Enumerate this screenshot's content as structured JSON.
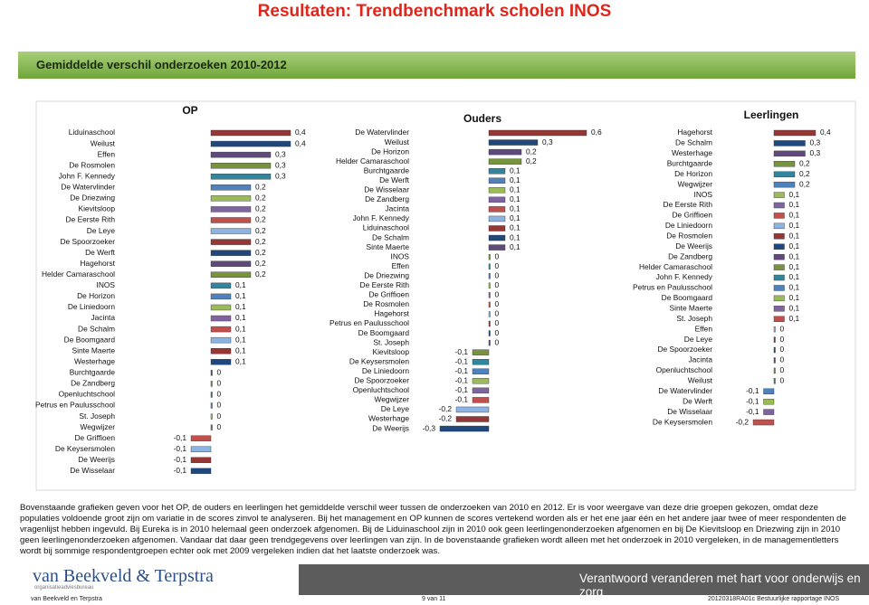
{
  "header": {
    "title": "Resultaten: Trendbenchmark scholen INOS",
    "section": "Gemiddelde verschil onderzoeken 2010-2012"
  },
  "chart_data": [
    {
      "type": "bar",
      "orientation": "horizontal",
      "title": "OP",
      "categories": [
        "Liduinaschool",
        "Weilust",
        "Effen",
        "De Rosmolen",
        "John F. Kennedy",
        "De Watervlinder",
        "De Driezwing",
        "Kievitsloop",
        "De Eerste Rith",
        "De Leye",
        "De Spoorzoeker",
        "De Werft",
        "Hagehorst",
        "Helder Camaraschool",
        "INOS",
        "De Horizon",
        "De Liniedoorn",
        "Jacinta",
        "De Schalm",
        "De Boomgaard",
        "Sinte Maerte",
        "Westerhage",
        "Burchtgaarde",
        "De Zandberg",
        "Openluchtschool",
        "Petrus en Paulusschool",
        "St. Joseph",
        "Wegwijzer",
        "De Griffioen",
        "De Keysersmolen",
        "De Weerijs",
        "De Wisselaar"
      ],
      "values": [
        0.4,
        0.4,
        0.3,
        0.3,
        0.3,
        0.2,
        0.2,
        0.2,
        0.2,
        0.2,
        0.2,
        0.2,
        0.2,
        0.2,
        0.1,
        0.1,
        0.1,
        0.1,
        0.1,
        0.1,
        0.1,
        0.1,
        0,
        0,
        0,
        0,
        0,
        0,
        -0.1,
        -0.1,
        -0.1,
        -0.1
      ],
      "value_labels": [
        "0,4",
        "0,4",
        "0,3",
        "0,3",
        "0,3",
        "0,2",
        "0,2",
        "0,2",
        "0,2",
        "0,2",
        "0,2",
        "0,2",
        "0,2",
        "0,2",
        "0,1",
        "0,1",
        "0,1",
        "0,1",
        "0,1",
        "0,1",
        "0,1",
        "0,1",
        "0",
        "0",
        "0",
        "0",
        "0",
        "0",
        "-0,1",
        "-0,1",
        "-0,1",
        "-0,1"
      ],
      "palette": [
        "#953735",
        "#1f497d",
        "#604a7b",
        "#77933c",
        "#31859c",
        "#4f81bd",
        "#9bbb59",
        "#8064a2",
        "#c0504d",
        "#8db3e2"
      ]
    },
    {
      "type": "bar",
      "orientation": "horizontal",
      "title": "Ouders",
      "categories": [
        "De Watervlinder",
        "Weilust",
        "De Horizon",
        "Helder Camaraschool",
        "Burchtgaarde",
        "De Werft",
        "De Wisselaar",
        "De Zandberg",
        "Jacinta",
        "John F. Kennedy",
        "Liduinaschool",
        "De Schalm",
        "Sinte Maerte",
        "INOS",
        "Effen",
        "De Driezwing",
        "De Eerste Rith",
        "De Griffioen",
        "De Rosmolen",
        "Hagehorst",
        "Petrus en Paulusschool",
        "De Boomgaard",
        "St. Joseph",
        "Kievitsloop",
        "De Keysersmolen",
        "De Liniedoorn",
        "De Spoorzoeker",
        "Openluchtschool",
        "Wegwijzer",
        "De Leye",
        "Westerhage",
        "De Weerijs"
      ],
      "values": [
        0.6,
        0.3,
        0.2,
        0.2,
        0.1,
        0.1,
        0.1,
        0.1,
        0.1,
        0.1,
        0.1,
        0.1,
        0.1,
        0,
        0,
        0,
        0,
        0,
        0,
        0,
        0,
        0,
        0,
        -0.1,
        -0.1,
        -0.1,
        -0.1,
        -0.1,
        -0.1,
        -0.2,
        -0.2,
        -0.3
      ],
      "value_labels": [
        "0,6",
        "0,3",
        "0,2",
        "0,2",
        "0,1",
        "0,1",
        "0,1",
        "0,1",
        "0,1",
        "0,1",
        "0,1",
        "0,1",
        "0,1",
        "0",
        "0",
        "0",
        "0",
        "0",
        "0",
        "0",
        "0",
        "0",
        "0",
        "-0,1",
        "-0,1",
        "-0,1",
        "-0,1",
        "-0,1",
        "-0,1",
        "-0,2",
        "-0,2",
        "-0,3"
      ],
      "palette": [
        "#953735",
        "#1f497d",
        "#604a7b",
        "#77933c",
        "#31859c",
        "#4f81bd",
        "#9bbb59",
        "#8064a2",
        "#c0504d",
        "#8db3e2"
      ]
    },
    {
      "type": "bar",
      "orientation": "horizontal",
      "title": "Leerlingen",
      "categories": [
        "Hagehorst",
        "De Schalm",
        "Westerhage",
        "Burchtgaarde",
        "De Horizon",
        "Wegwijzer",
        "INOS",
        "De Eerste Rith",
        "De Griffioen",
        "De Liniedoorn",
        "De Rosmolen",
        "De Weerijs",
        "De Zandberg",
        "Helder Camaraschool",
        "John F. Kennedy",
        "Petrus en Paulusschool",
        "De Boomgaard",
        "Sinte Maerte",
        "St. Joseph",
        "Effen",
        "De Leye",
        "De Spoorzoeker",
        "Jacinta",
        "Openluchtschool",
        "Weilust",
        "De Watervlinder",
        "De Werft",
        "De Wisselaar",
        "De Keysersmolen"
      ],
      "values": [
        0.4,
        0.3,
        0.3,
        0.2,
        0.2,
        0.2,
        0.1,
        0.1,
        0.1,
        0.1,
        0.1,
        0.1,
        0.1,
        0.1,
        0.1,
        0.1,
        0.1,
        0.1,
        0.1,
        0,
        0,
        0,
        0,
        0,
        0,
        -0.1,
        -0.1,
        -0.1,
        -0.2
      ],
      "value_labels": [
        "0,4",
        "0,3",
        "0,3",
        "0,2",
        "0,2",
        "0,2",
        "0,1",
        "0,1",
        "0,1",
        "0,1",
        "0,1",
        "0,1",
        "0,1",
        "0,1",
        "0,1",
        "0,1",
        "0,1",
        "0,1",
        "0,1",
        "0",
        "0",
        "0",
        "0",
        "0",
        "0",
        "-0,1",
        "-0,1",
        "-0,1",
        "-0,2"
      ],
      "palette": [
        "#953735",
        "#1f497d",
        "#604a7b",
        "#77933c",
        "#31859c",
        "#4f81bd",
        "#9bbb59",
        "#8064a2",
        "#c0504d",
        "#8db3e2"
      ]
    }
  ],
  "body": {
    "paragraph": "Bovenstaande grafieken geven voor het OP, de ouders en leerlingen het gemiddelde verschil weer tussen de onderzoeken van 2010 en 2012. Er is voor weergave van deze drie groepen gekozen, omdat deze populaties voldoende groot zijn om variatie in de scores zinvol te analyseren. Bij het management en OP kunnen de scores vertekend worden als er het ene jaar één en het andere jaar twee of meer respondenten de vragenlijst hebben ingevuld. Bij Eureka is in 2010 helemaal geen onderzoek afgenomen. Bij de Liduinaschool zijn in 2010 ook geen leerlingenonderzoeken afgenomen en bij De Kievitsloop en Driezwing zijn in 2010 geen leerlingenonderzoeken afgenomen. Vandaar dat daar geen trendgegevens over leerlingen van zijn. In de bovenstaande grafieken wordt alleen met het onderzoek in 2010 vergeleken, in de managementletters wordt bij sommige respondentgroepen echter ook met 2009 vergeleken indien dat het laatste onderzoek was."
  },
  "footer": {
    "logo": "van Beekveld & Terpstra",
    "logo_sub": "organisatieadviesbureau",
    "tagline": "Verantwoord veranderen met hart voor onderwijs en zorg",
    "left": "van Beekveld en Terpstra",
    "page": "9 van 11",
    "right": "20120318RA01c Bestuurlijke rapportage INOS"
  }
}
